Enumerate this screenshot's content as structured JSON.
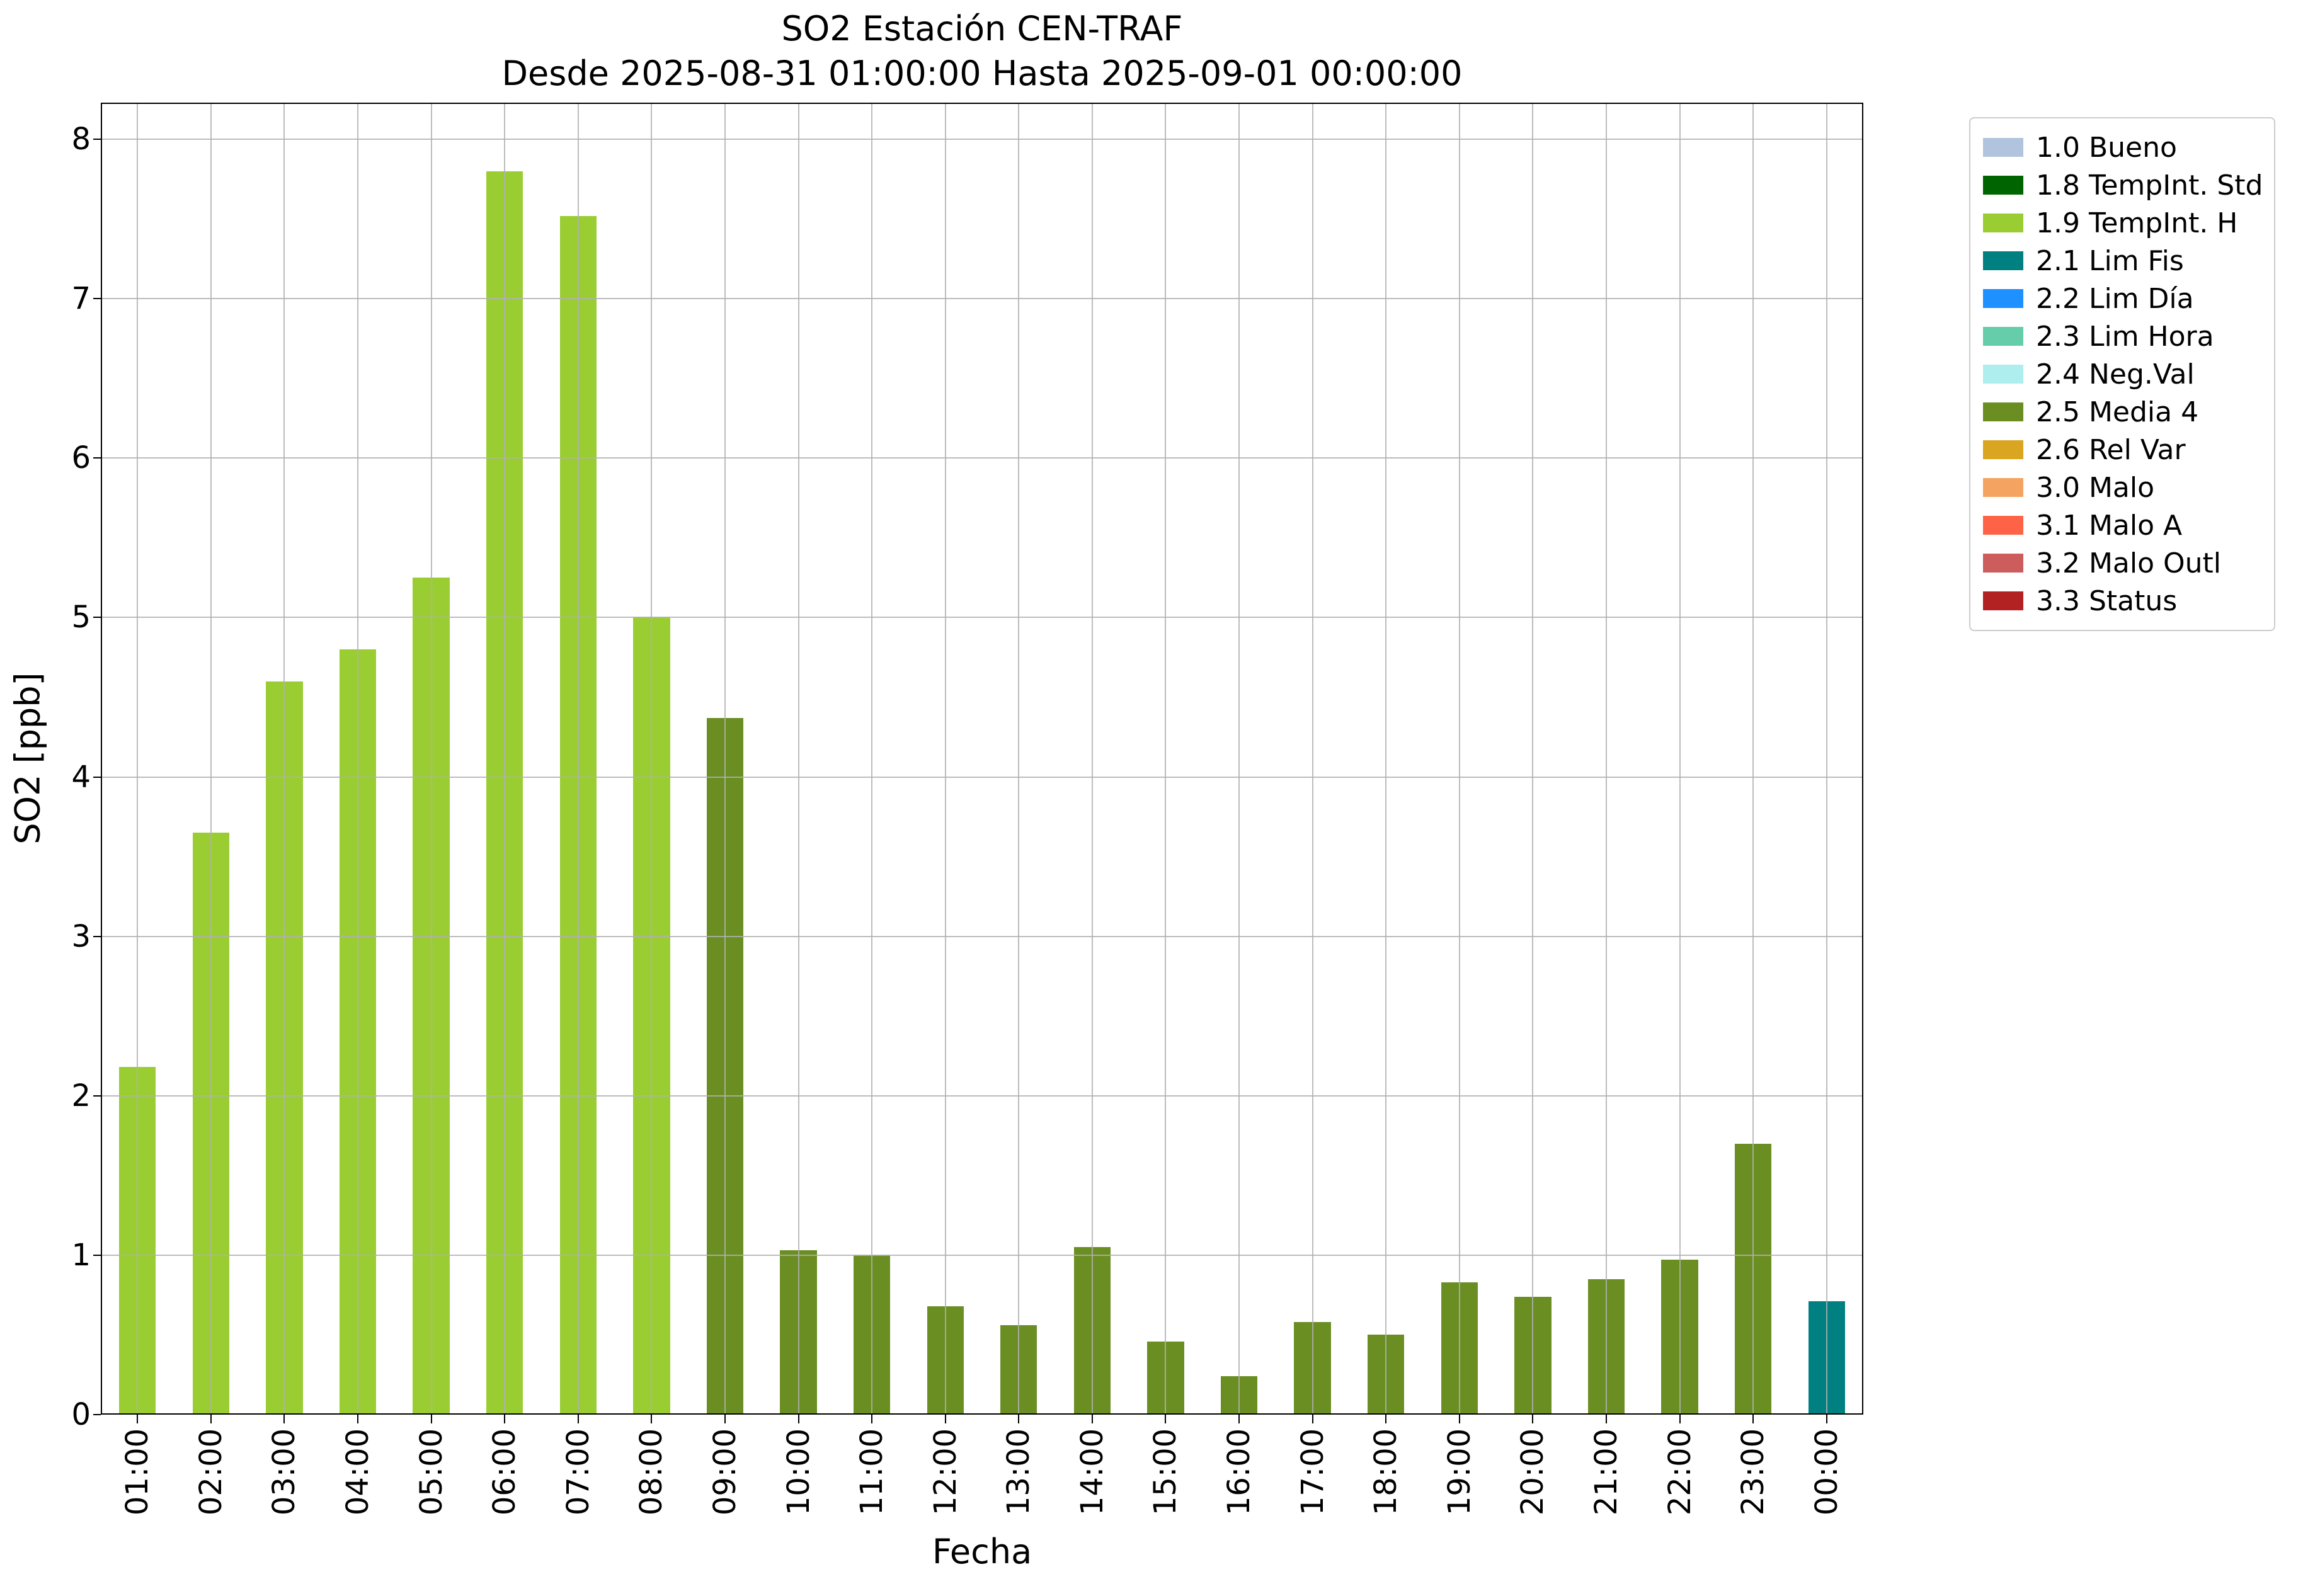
{
  "chart_data": {
    "type": "bar",
    "title": "SO2 Estación CEN-TRAF",
    "subtitle": "Desde 2025-08-31 01:00:00 Hasta 2025-09-01 00:00:00",
    "xlabel": "Fecha",
    "ylabel": "SO2 [ppb]",
    "ylim": [
      0,
      8
    ],
    "yticks": [
      0,
      1,
      2,
      3,
      4,
      5,
      6,
      7,
      8
    ],
    "grid": true,
    "grid_color": "#b0b0b0",
    "legend_position": "outside-upper-right",
    "categories": [
      "01:00",
      "02:00",
      "03:00",
      "04:00",
      "05:00",
      "06:00",
      "07:00",
      "08:00",
      "09:00",
      "10:00",
      "11:00",
      "12:00",
      "13:00",
      "14:00",
      "15:00",
      "16:00",
      "17:00",
      "18:00",
      "19:00",
      "20:00",
      "21:00",
      "22:00",
      "23:00",
      "00:00"
    ],
    "values": [
      2.18,
      3.65,
      4.6,
      4.8,
      5.25,
      7.8,
      7.52,
      5.0,
      4.37,
      1.03,
      1.0,
      0.68,
      0.56,
      1.05,
      0.46,
      0.24,
      0.58,
      0.5,
      0.83,
      0.74,
      0.85,
      0.97,
      1.7,
      0.71
    ],
    "statuses": [
      "1.9 TempInt. H",
      "1.9 TempInt. H",
      "1.9 TempInt. H",
      "1.9 TempInt. H",
      "1.9 TempInt. H",
      "1.9 TempInt. H",
      "1.9 TempInt. H",
      "1.9 TempInt. H",
      "2.5 Media 4",
      "2.5 Media 4",
      "2.5 Media 4",
      "2.5 Media 4",
      "2.5 Media 4",
      "2.5 Media 4",
      "2.5 Media 4",
      "2.5 Media 4",
      "2.5 Media 4",
      "2.5 Media 4",
      "2.5 Media 4",
      "2.5 Media 4",
      "2.5 Media 4",
      "2.5 Media 4",
      "2.5 Media 4",
      "2.1 Lim Fis"
    ],
    "legend": [
      {
        "label": "1.0 Bueno",
        "color": "#B0C4DE"
      },
      {
        "label": "1.8 TempInt. Std",
        "color": "#006400"
      },
      {
        "label": "1.9 TempInt. H",
        "color": "#9ACD32"
      },
      {
        "label": "2.1 Lim Fis",
        "color": "#008080"
      },
      {
        "label": "2.2 Lim Día",
        "color": "#1E90FF"
      },
      {
        "label": "2.3 Lim Hora",
        "color": "#66CDAA"
      },
      {
        "label": "2.4 Neg.Val",
        "color": "#AFEEEE"
      },
      {
        "label": "2.5 Media 4",
        "color": "#6B8E23"
      },
      {
        "label": "2.6 Rel Var",
        "color": "#DAA520"
      },
      {
        "label": "3.0 Malo",
        "color": "#F4A460"
      },
      {
        "label": "3.1 Malo A",
        "color": "#FF6347"
      },
      {
        "label": "3.2 Malo Outl",
        "color": "#CD5C5C"
      },
      {
        "label": "3.3 Status",
        "color": "#B22222"
      }
    ]
  }
}
